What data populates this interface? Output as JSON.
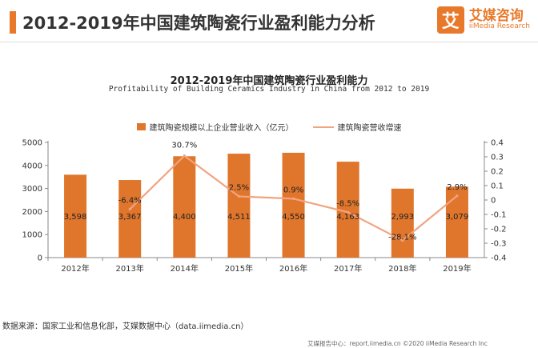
{
  "header": {
    "title": "2012-2019年中国建筑陶瓷行业盈利能力分析",
    "logo_mark": "艾",
    "logo_cn": "艾媒咨询",
    "logo_en": "iiMedia Research"
  },
  "footer": {
    "source": "数据来源：国家工业和信息化部，艾媒数据中心（data.iimedia.cn）",
    "bottom": "艾媒报告中心：report.iimedia.cn   ©2020   iiMedia Research  Inc"
  },
  "colors": {
    "bar": "#e0762c",
    "line": "#f2a37f",
    "accent": "#e8792b"
  },
  "chart_data": {
    "type": "bar",
    "title": "2012-2019年中国建筑陶瓷行业盈利能力",
    "subtitle": "Profitability of Building Ceramics Industry in China from 2012 to 2019",
    "categories": [
      "2012年",
      "2013年",
      "2014年",
      "2015年",
      "2016年",
      "2017年",
      "2018年",
      "2019年"
    ],
    "series": [
      {
        "name": "建筑陶瓷规模以上企业营业收入（亿元）",
        "type": "bar",
        "axis": "left",
        "values": [
          3598,
          3367,
          4400,
          4511,
          4550,
          4163,
          2993,
          3079
        ],
        "labels": [
          "3,598",
          "3,367",
          "4,400",
          "4,511",
          "4,550",
          "4,163",
          "2,993",
          "3,079"
        ]
      },
      {
        "name": "建筑陶瓷营收增速",
        "type": "line",
        "axis": "right",
        "values": [
          null,
          -0.064,
          0.307,
          0.025,
          0.009,
          -0.085,
          -0.281,
          0.029
        ],
        "labels": [
          "",
          "-6.4%",
          "30.7%",
          "2.5%",
          "0.9%",
          "-8.5%",
          "-28.1%",
          "2.9%"
        ]
      }
    ],
    "ylim_left": [
      0,
      5000
    ],
    "yticks_left": [
      "0",
      "1000",
      "2000",
      "3000",
      "4000",
      "5000"
    ],
    "ylim_right": [
      -0.4,
      0.4
    ],
    "yticks_right": [
      "0.4",
      "0.3",
      "0.2",
      "0.1",
      "0",
      "-0.1",
      "-0.2",
      "-0.3",
      "-0.4"
    ],
    "grid": false,
    "legend": "top-center"
  }
}
